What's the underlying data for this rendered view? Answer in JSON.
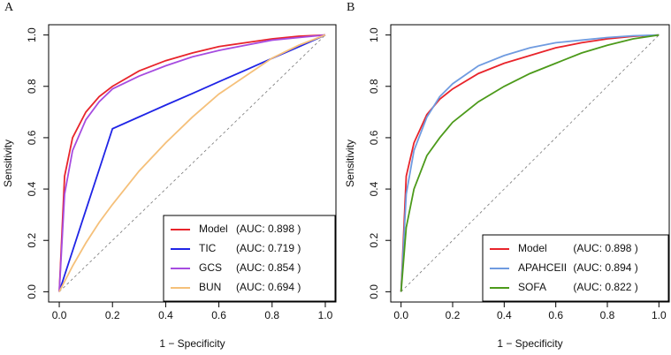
{
  "chart_data": [
    {
      "type": "line",
      "panel_label": "A",
      "xlabel": "1 − Specificity",
      "ylabel": "Sensitivity",
      "xlim": [
        -0.04,
        1.04
      ],
      "ylim": [
        -0.04,
        1.04
      ],
      "xticks": [
        {
          "value": 0,
          "label": "0.0"
        },
        0.2,
        0.4,
        0.6,
        0.8,
        {
          "value": 1,
          "label": "1.0"
        }
      ],
      "yticks": [
        {
          "value": 0,
          "label": "0.0"
        },
        0.2,
        0.4,
        0.6,
        0.8,
        {
          "value": 1,
          "label": "1.0"
        }
      ],
      "legend": "bottomright",
      "grid": false,
      "x": [
        0,
        0.02,
        0.05,
        0.1,
        0.15,
        0.2,
        0.3,
        0.4,
        0.5,
        0.6,
        0.7,
        0.8,
        0.9,
        1
      ],
      "series": [
        {
          "name": "Model",
          "auc_label": "(AUC: 0.898 )",
          "color": "#e8242b",
          "values": [
            0,
            0.45,
            0.6,
            0.7,
            0.76,
            0.8,
            0.86,
            0.9,
            0.93,
            0.955,
            0.97,
            0.985,
            0.995,
            1
          ]
        },
        {
          "name": "TIC",
          "auc_label": "(AUC: 0.719 )",
          "color": "#1f24e6",
          "values": [
            0,
            0.064,
            0.159,
            0.318,
            0.476,
            0.635,
            0.681,
            0.727,
            0.772,
            0.818,
            0.863,
            0.909,
            0.954,
            1
          ]
        },
        {
          "name": "GCS",
          "auc_label": "(AUC: 0.854 )",
          "color": "#a64ce0",
          "values": [
            0,
            0.38,
            0.55,
            0.67,
            0.74,
            0.79,
            0.84,
            0.88,
            0.915,
            0.94,
            0.96,
            0.98,
            0.99,
            1
          ]
        },
        {
          "name": "BUN",
          "auc_label": "(AUC: 0.694 )",
          "color": "#f5c07a",
          "values": [
            0,
            0.04,
            0.1,
            0.19,
            0.27,
            0.34,
            0.47,
            0.58,
            0.68,
            0.77,
            0.84,
            0.91,
            0.96,
            1
          ]
        }
      ]
    },
    {
      "type": "line",
      "panel_label": "B",
      "xlabel": "1 − Specificity",
      "ylabel": "Sensitivity",
      "xlim": [
        -0.04,
        1.04
      ],
      "ylim": [
        -0.04,
        1.04
      ],
      "xticks": [
        {
          "value": 0,
          "label": "0.0"
        },
        0.2,
        0.4,
        0.6,
        0.8,
        {
          "value": 1,
          "label": "1.0"
        }
      ],
      "yticks": [
        {
          "value": 0,
          "label": "0.0"
        },
        0.2,
        0.4,
        0.6,
        0.8,
        {
          "value": 1,
          "label": "1.0"
        }
      ],
      "legend": "bottomright",
      "grid": false,
      "x": [
        0,
        0.02,
        0.05,
        0.1,
        0.15,
        0.2,
        0.3,
        0.4,
        0.5,
        0.6,
        0.7,
        0.8,
        0.9,
        1
      ],
      "series": [
        {
          "name": "Model",
          "auc_label": "(AUC: 0.898 )",
          "color": "#e8242b",
          "values": [
            0,
            0.45,
            0.58,
            0.69,
            0.75,
            0.79,
            0.85,
            0.89,
            0.92,
            0.95,
            0.97,
            0.985,
            0.995,
            1
          ]
        },
        {
          "name": "APAHCEII",
          "auc_label": "(AUC: 0.894 )",
          "color": "#6f9be0",
          "values": [
            0,
            0.38,
            0.55,
            0.68,
            0.76,
            0.81,
            0.88,
            0.92,
            0.95,
            0.97,
            0.98,
            0.99,
            0.997,
            1
          ]
        },
        {
          "name": "SOFA",
          "auc_label": "(AUC: 0.822 )",
          "color": "#4c9a1a",
          "values": [
            0,
            0.25,
            0.4,
            0.53,
            0.6,
            0.66,
            0.74,
            0.8,
            0.85,
            0.89,
            0.93,
            0.96,
            0.985,
            1
          ]
        }
      ]
    }
  ]
}
